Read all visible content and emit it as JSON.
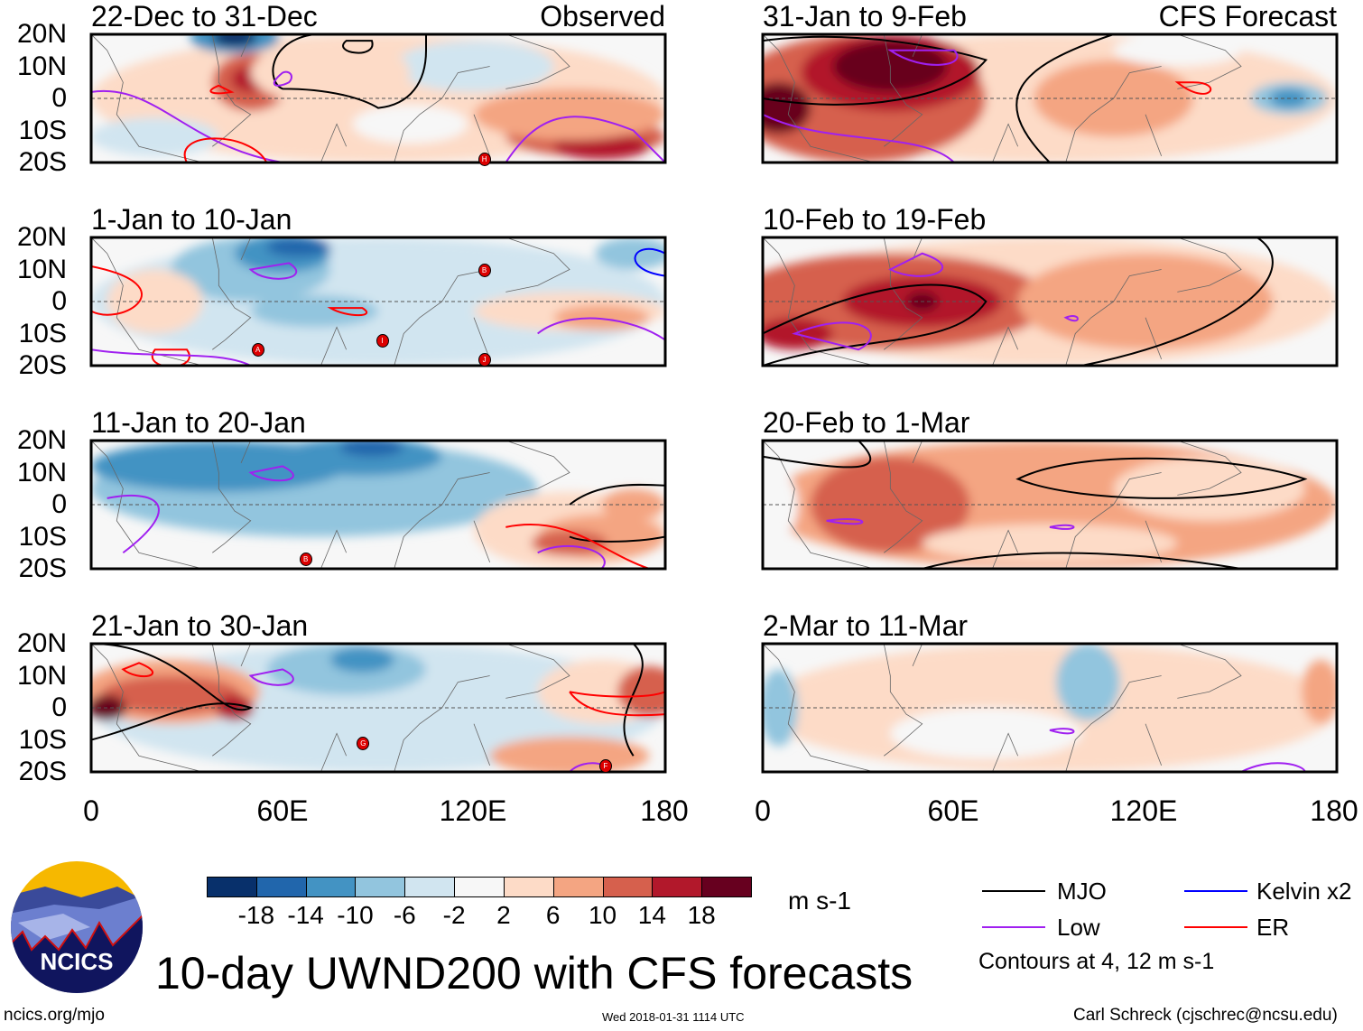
{
  "figure_title": "10-day UWND200 with CFS forecasts",
  "columns": {
    "left": "Observed",
    "right": "CFS Forecast"
  },
  "lat_labels": [
    "20N",
    "10N",
    "0",
    "10S",
    "20S"
  ],
  "lon_labels": [
    "0",
    "60E",
    "120E",
    "180"
  ],
  "panels": [
    {
      "title": "22-Dec to 31-Dec",
      "column": "left",
      "storms": [
        "H"
      ]
    },
    {
      "title": "1-Jan to 10-Jan",
      "column": "left",
      "storms": [
        "B",
        "A",
        "I",
        "J"
      ]
    },
    {
      "title": "11-Jan to 20-Jan",
      "column": "left",
      "storms": [
        "B"
      ]
    },
    {
      "title": "21-Jan to 30-Jan",
      "column": "left",
      "storms": [
        "G",
        "F"
      ]
    },
    {
      "title": "31-Jan to 9-Feb",
      "column": "right",
      "storms": []
    },
    {
      "title": "10-Feb to 19-Feb",
      "column": "right",
      "storms": []
    },
    {
      "title": "20-Feb to 1-Mar",
      "column": "right",
      "storms": []
    },
    {
      "title": "2-Mar to 11-Mar",
      "column": "right",
      "storms": []
    }
  ],
  "colorbar": {
    "unit": "m s-1",
    "labels": [
      "-18",
      "-14",
      "-10",
      "-6",
      "-2",
      "2",
      "6",
      "10",
      "14",
      "18"
    ],
    "colors": [
      "#08306b",
      "#2166ac",
      "#4393c3",
      "#92c5de",
      "#d1e5f0",
      "#f7f7f7",
      "#fddbc7",
      "#f4a582",
      "#d6604d",
      "#b2182b",
      "#67001f"
    ]
  },
  "legend": {
    "items": [
      {
        "label": "MJO",
        "color": "#000000"
      },
      {
        "label": "Kelvin x2",
        "color": "#0000ff"
      },
      {
        "label": "Low",
        "color": "#a020f0"
      },
      {
        "label": "ER",
        "color": "#ff0000"
      }
    ],
    "note": "Contours at 4, 12 m s-1"
  },
  "logo_text": "NCICS",
  "footer": {
    "url": "ncics.org/mjo",
    "timestamp": "Wed 2018-01-31 1114 UTC",
    "credit": "Carl Schreck (cjschrec@ncsu.edu)"
  }
}
